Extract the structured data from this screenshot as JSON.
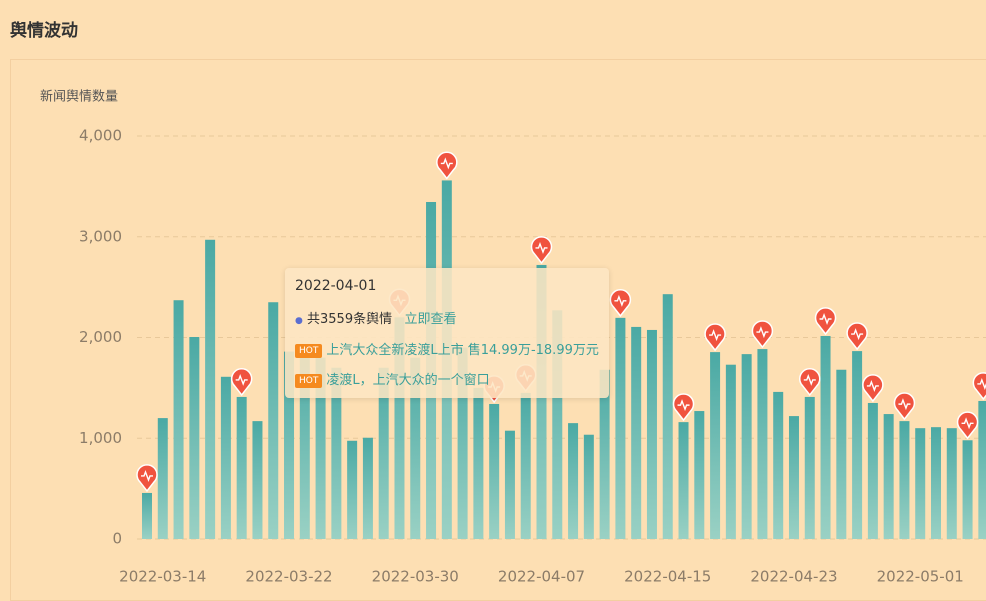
{
  "page_title": "舆情波动",
  "chart_data": {
    "type": "bar",
    "ylabel": "新闻舆情数量",
    "color": "#4fada6",
    "categories": [
      null,
      "2022-03-14",
      null,
      null,
      null,
      null,
      null,
      null,
      null,
      "2022-03-22",
      null,
      null,
      null,
      null,
      null,
      null,
      null,
      "2022-03-30",
      null,
      null,
      null,
      null,
      null,
      null,
      null,
      "2022-04-07",
      null,
      null,
      null,
      null,
      null,
      null,
      null,
      "2022-04-15",
      null,
      null,
      null,
      null,
      null,
      null,
      null,
      "2022-04-23",
      null,
      null,
      null,
      null,
      null,
      null,
      null,
      "2022-05-01",
      null,
      null,
      null,
      null
    ],
    "values": [
      457,
      1200,
      2370,
      2005,
      2970,
      1610,
      1410,
      1170,
      2350,
      1860,
      1900,
      1800,
      1700,
      975,
      1005,
      1700,
      2200,
      1800,
      3345,
      3559,
      1900,
      1500,
      1340,
      1075,
      1450,
      2720,
      2270,
      1150,
      1035,
      1680,
      2195,
      2105,
      2075,
      2430,
      1160,
      1270,
      1855,
      1730,
      1835,
      1885,
      1460,
      1220,
      1410,
      2015,
      1680,
      1865,
      1350,
      1240,
      1170,
      1100,
      1110,
      1100,
      980,
      1370
    ],
    "markers": [
      0,
      6,
      16,
      19,
      22,
      24,
      25,
      30,
      34,
      36,
      39,
      42,
      43,
      45,
      46,
      48,
      52,
      53
    ],
    "marker_color": "#f0533f",
    "ylim": [
      0,
      4000
    ],
    "yticks": [
      0,
      {
        "value": 1000,
        "label": "1,000"
      },
      {
        "value": 2000,
        "label": "2,000"
      },
      {
        "value": 3000,
        "label": "3,000"
      },
      {
        "value": 4000,
        "label": "4,000"
      }
    ],
    "grid": true,
    "tooltip": {
      "date": "2022-04-01",
      "count": "共3559条舆情",
      "link": "立即查看",
      "items": [
        {
          "badge": "HOT",
          "text": "上汽大众全新凌渡L上市 售14.99万-18.99万元"
        },
        {
          "badge": "HOT",
          "text": "凌渡L，上汽大众的一个窗口"
        }
      ]
    }
  }
}
